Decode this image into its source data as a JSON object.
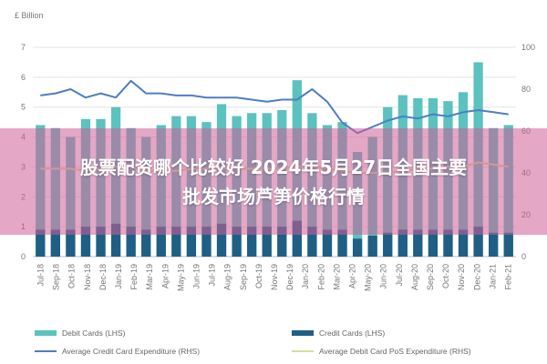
{
  "overlay": {
    "line1": "股票配资哪个比较好 2024年5月27日全国主要",
    "line2": "批发市场芦笋价格行情"
  },
  "chart_data": {
    "type": "bar",
    "left_axis_unit": "£ Billion",
    "ylim_left": [
      0,
      7
    ],
    "ylim_right": [
      0,
      100
    ],
    "yticks_left": [
      "0",
      "1",
      "2",
      "3",
      "4",
      "5",
      "6",
      "7"
    ],
    "yticks_right": [
      "0",
      "20",
      "40",
      "60",
      "80",
      "100"
    ],
    "categories": [
      "Jul-18",
      "Aug-18",
      "Sep-18",
      "Oct-18",
      "Nov-18",
      "Dec-18",
      "Jan-19",
      "Feb-19",
      "Mar-19",
      "Apr-19",
      "May-19",
      "Jun-19",
      "Jul-19",
      "Aug-19",
      "Sep-19",
      "Oct-19",
      "Nov-19",
      "Dec-19",
      "Jan-20",
      "Feb-20",
      "Mar-20",
      "Apr-20",
      "May-20",
      "Jun-20",
      "Jul-20",
      "Aug-20",
      "Sep-20",
      "Oct-20",
      "Nov-20",
      "Dec-20",
      "Jan-21",
      "Feb-21"
    ],
    "xtick_labels": [
      "Jul-18",
      "Sep-18",
      "Oct-18",
      "Nov-18",
      "Dec-18",
      "Jan-19",
      "Feb-19",
      "Mar-19",
      "Apr-19",
      "May-19",
      "Jun-19",
      "Jul-19",
      "Aug-19",
      "Sep-19",
      "Oct-19",
      "Nov-19",
      "Dec-19",
      "Jan-20",
      "Feb-20",
      "Mar-20",
      "Apr-20",
      "May-20",
      "Jun-20",
      "Jul-20",
      "Aug-20",
      "Sep-20",
      "Oct-20",
      "Nov-20",
      "Dec-20",
      "Jan-21",
      "Feb-21"
    ],
    "series": [
      {
        "name": "Debit Cards (LHS)",
        "axis": "left",
        "kind": "bar",
        "color": "#5bc2bf",
        "values": [
          4.4,
          4.3,
          4.0,
          4.6,
          4.6,
          5.0,
          4.3,
          4.0,
          4.4,
          4.7,
          4.7,
          4.5,
          5.1,
          4.7,
          4.8,
          4.8,
          4.9,
          5.9,
          4.8,
          4.4,
          4.5,
          3.5,
          4.0,
          5.0,
          5.4,
          5.3,
          5.3,
          5.2,
          5.5,
          6.5,
          4.3,
          4.4
        ]
      },
      {
        "name": "Credit Cards (LHS)",
        "axis": "left",
        "kind": "bar",
        "color": "#1f5f86",
        "values": [
          0.9,
          0.9,
          0.9,
          1.0,
          1.0,
          1.1,
          1.0,
          0.9,
          1.0,
          1.0,
          1.0,
          1.0,
          1.1,
          1.0,
          1.0,
          1.0,
          1.0,
          1.2,
          1.0,
          0.9,
          0.9,
          0.6,
          0.7,
          0.8,
          0.9,
          0.9,
          0.9,
          0.9,
          0.9,
          1.0,
          0.8,
          0.8
        ]
      },
      {
        "name": "Average Credit Card Expenditure (RHS)",
        "axis": "right",
        "kind": "line",
        "color": "#4c7fc4",
        "values": [
          77,
          78,
          80,
          76,
          78,
          76,
          84,
          78,
          78,
          77,
          77,
          76,
          76,
          76,
          75,
          74,
          75,
          75,
          80,
          74,
          64,
          59,
          62,
          65,
          67,
          66,
          68,
          67,
          69,
          70,
          69,
          68
        ]
      },
      {
        "name": "Average Debit Card PoS Expenditure (RHS)",
        "axis": "right",
        "kind": "line",
        "color": "#d8dd9a",
        "values": [
          42,
          42,
          42,
          41,
          42,
          43,
          43,
          41,
          41,
          41,
          42,
          42,
          42,
          42,
          42,
          42,
          42,
          43,
          43,
          42,
          41,
          40,
          40,
          40,
          41,
          42,
          42,
          43,
          43,
          45,
          44,
          43
        ]
      }
    ]
  }
}
